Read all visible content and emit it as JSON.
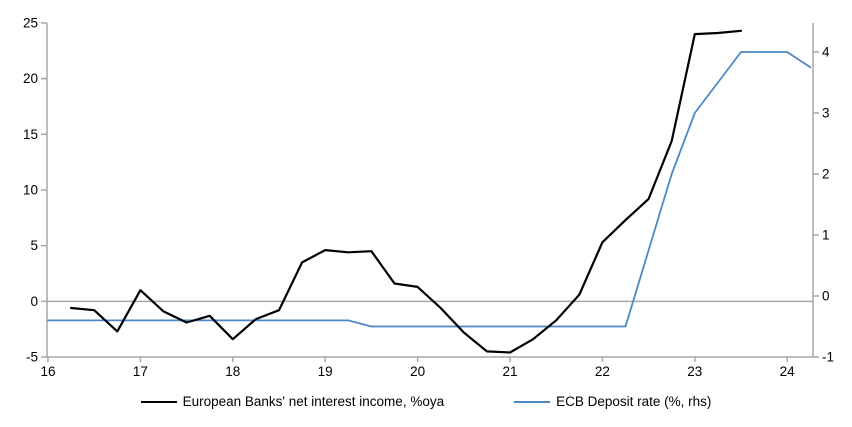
{
  "chart_data": {
    "type": "line",
    "title": "",
    "xlabel": "",
    "ylabel_left": "",
    "ylabel_right": "",
    "x_ticks": [
      16,
      17,
      18,
      19,
      20,
      21,
      22,
      23,
      24
    ],
    "left_ticks": [
      25,
      20,
      15,
      10,
      5,
      0,
      -5
    ],
    "right_ticks": [
      4,
      3,
      2,
      1,
      0,
      -1
    ],
    "xlim": [
      16,
      24.3
    ],
    "ylim_left": [
      -5,
      25.1
    ],
    "ylim_right": [
      -1,
      4.48
    ],
    "grid": "zero-line-only",
    "legend_position": "bottom-center",
    "colors": {
      "axis": "#a6a6a6",
      "zero_line": "#a6a6a6",
      "black_series": "#000000",
      "blue_series": "#4d88c6"
    },
    "series": [
      {
        "name": "European Banks' net interest income, %oya",
        "axis": "left",
        "color": "#000000",
        "stroke_width": 2.2,
        "points": [
          [
            16.25,
            -0.6
          ],
          [
            16.5,
            -0.8
          ],
          [
            16.75,
            -2.7
          ],
          [
            17.0,
            1.0
          ],
          [
            17.25,
            -0.9
          ],
          [
            17.5,
            -1.9
          ],
          [
            17.75,
            -1.3
          ],
          [
            18.0,
            -3.4
          ],
          [
            18.25,
            -1.6
          ],
          [
            18.5,
            -0.8
          ],
          [
            18.75,
            3.5
          ],
          [
            19.0,
            4.6
          ],
          [
            19.25,
            4.4
          ],
          [
            19.5,
            4.5
          ],
          [
            19.75,
            1.6
          ],
          [
            20.0,
            1.3
          ],
          [
            20.25,
            -0.6
          ],
          [
            20.5,
            -2.8
          ],
          [
            20.75,
            -4.5
          ],
          [
            21.0,
            -4.6
          ],
          [
            21.25,
            -3.4
          ],
          [
            21.5,
            -1.7
          ],
          [
            21.75,
            0.6
          ],
          [
            22.0,
            5.3
          ],
          [
            22.25,
            7.3
          ],
          [
            22.5,
            9.2
          ],
          [
            22.75,
            14.4
          ],
          [
            23.0,
            24.0
          ],
          [
            23.25,
            24.1
          ],
          [
            23.5,
            24.3
          ]
        ]
      },
      {
        "name": "ECB Deposit rate (%, rhs)",
        "axis": "right",
        "color": "#4d88c6",
        "stroke_width": 1.8,
        "points": [
          [
            16.0,
            -0.4
          ],
          [
            16.25,
            -0.4
          ],
          [
            16.5,
            -0.4
          ],
          [
            16.75,
            -0.4
          ],
          [
            17.0,
            -0.4
          ],
          [
            17.25,
            -0.4
          ],
          [
            17.5,
            -0.4
          ],
          [
            17.75,
            -0.4
          ],
          [
            18.0,
            -0.4
          ],
          [
            18.25,
            -0.4
          ],
          [
            18.5,
            -0.4
          ],
          [
            18.75,
            -0.4
          ],
          [
            19.0,
            -0.4
          ],
          [
            19.25,
            -0.4
          ],
          [
            19.5,
            -0.5
          ],
          [
            19.75,
            -0.5
          ],
          [
            20.0,
            -0.5
          ],
          [
            20.25,
            -0.5
          ],
          [
            20.5,
            -0.5
          ],
          [
            20.75,
            -0.5
          ],
          [
            21.0,
            -0.5
          ],
          [
            21.25,
            -0.5
          ],
          [
            21.5,
            -0.5
          ],
          [
            21.75,
            -0.5
          ],
          [
            22.0,
            -0.5
          ],
          [
            22.25,
            -0.5
          ],
          [
            22.5,
            0.75
          ],
          [
            22.75,
            2.0
          ],
          [
            23.0,
            3.0
          ],
          [
            23.25,
            3.5
          ],
          [
            23.5,
            4.0
          ],
          [
            23.75,
            4.0
          ],
          [
            24.0,
            4.0
          ],
          [
            24.25,
            3.75
          ]
        ]
      }
    ],
    "legend": {
      "items": [
        {
          "label": "European Banks' net interest income, %oya",
          "color": "#000000"
        },
        {
          "label": "ECB Deposit rate (%, rhs)",
          "color": "#4d88c6"
        }
      ]
    }
  }
}
